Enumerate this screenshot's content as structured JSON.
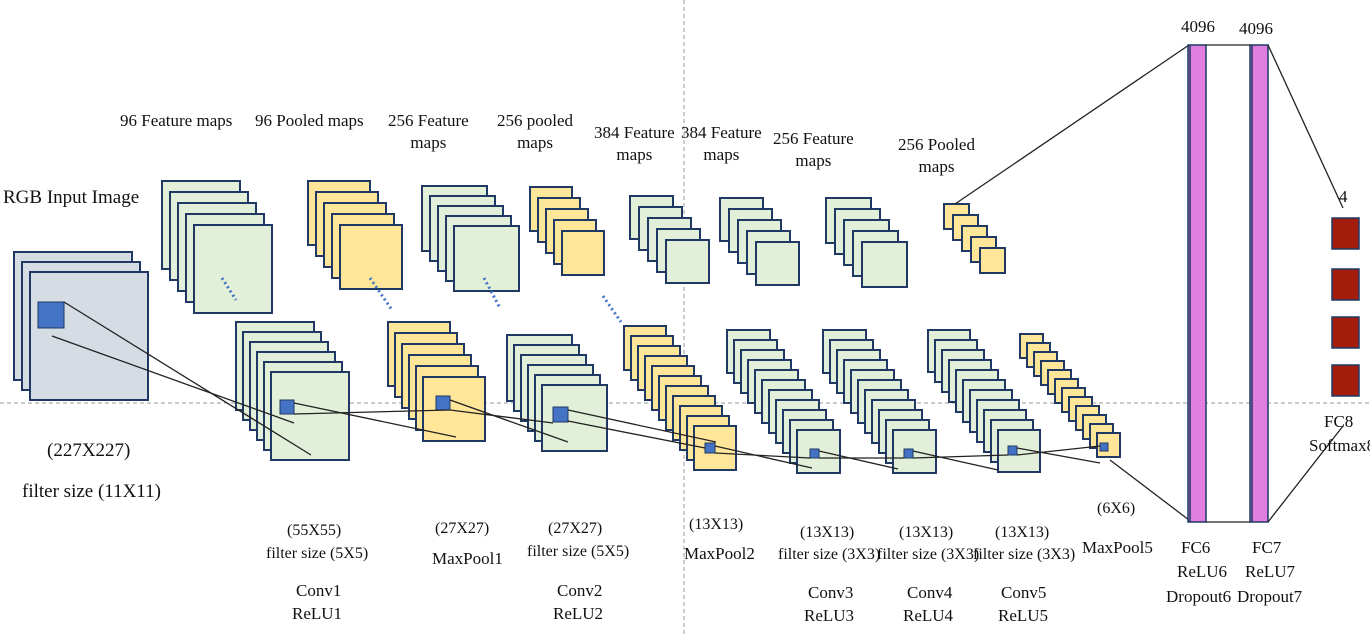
{
  "top_labels": {
    "l96_feature": "96 Feature maps",
    "l96_pooled": "96 Pooled maps",
    "l256_feature_a": "256 Feature",
    "l256_feature_b": "maps",
    "l256_pooled_a": "256 pooled",
    "l256_pooled_b": "maps",
    "l384_1a": "384 Feature",
    "l384_1b": "maps",
    "l384_2a": "384 Feature",
    "l384_2b": "maps",
    "l256_feat2_a": "256 Feature",
    "l256_feat2_b": "maps",
    "l256_pool2_a": "256 Pooled",
    "l256_pool2_b": "maps"
  },
  "input": {
    "title": "RGB Input Image",
    "size": "(227X227)",
    "filter": "filter size (11X11)"
  },
  "stages": {
    "conv1": {
      "size": "(55X55)",
      "filter": "filter size (5X5)",
      "name": "Conv1",
      "act": "ReLU1"
    },
    "pool1": {
      "size": "(27X27)",
      "name": "MaxPool1"
    },
    "conv2": {
      "size": "(27X27)",
      "filter": "filter size (5X5)",
      "name": "Conv2",
      "act": "ReLU2"
    },
    "pool2": {
      "size": "(13X13)",
      "name": "MaxPool2"
    },
    "conv3": {
      "size": "(13X13)",
      "filter": "filter size (3X3)",
      "name": "Conv3",
      "act": "ReLU3"
    },
    "conv4": {
      "size": "(13X13)",
      "filter": "filter size (3X3)",
      "name": "Conv4",
      "act": "ReLU4"
    },
    "conv5": {
      "size": "(13X13)",
      "filter": "filter size (3X3)",
      "name": "Conv5",
      "act": "ReLU5"
    },
    "pool5": {
      "size": "(6X6)",
      "name": "MaxPool5"
    }
  },
  "fc": {
    "fc6": {
      "units": "4096",
      "name": "FC6",
      "act": "ReLU6",
      "drop": "Dropout6"
    },
    "fc7": {
      "units": "4096",
      "name": "FC7",
      "act": "ReLU7",
      "drop": "Dropout7"
    },
    "fc8": {
      "units": "4",
      "name": "FC8",
      "act": "Softmax8"
    }
  },
  "colors": {
    "green_fill": "#e2f0d9",
    "yellow_fill": "#ffe699",
    "input_fill": "#d6dce4",
    "border": "#1f3864",
    "filter_blue": "#4472c4",
    "fc_pink": "#e07ee0",
    "output_red": "#a31d0d",
    "guide": "#999999"
  }
}
